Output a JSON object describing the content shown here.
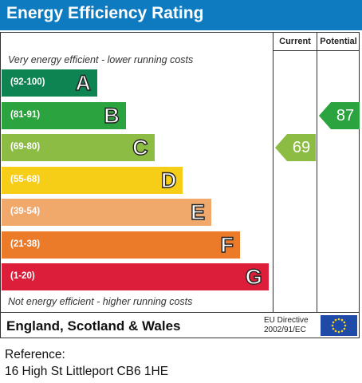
{
  "title": "Energy Efficiency Rating",
  "columns": {
    "current": "Current",
    "potential": "Potential"
  },
  "top_note": "Very energy efficient - lower running costs",
  "bottom_note": "Not energy efficient - higher running costs",
  "region": "England, Scotland & Wales",
  "directive": {
    "line1": "EU Directive",
    "line2": "2002/91/EC"
  },
  "flag_icon": "eu-flag-icon",
  "reference": {
    "label": "Reference:",
    "value": "16 High St Littleport CB6 1HE"
  },
  "chart_data": {
    "type": "bar",
    "title": "Energy Efficiency Rating",
    "categories": [
      "A",
      "B",
      "C",
      "D",
      "E",
      "F",
      "G"
    ],
    "ranges": [
      "(92-100)",
      "(81-91)",
      "(69-80)",
      "(55-68)",
      "(39-54)",
      "(21-38)",
      "(1-20)"
    ],
    "colors": [
      "#0d8451",
      "#2ba33e",
      "#8cbc44",
      "#f6cd17",
      "#f0a96b",
      "#eb7a29",
      "#dc1e3b"
    ],
    "current": {
      "value": 69,
      "band": "C",
      "color": "#8cbc44"
    },
    "potential": {
      "value": 87,
      "band": "B",
      "color": "#2ba33e"
    }
  }
}
